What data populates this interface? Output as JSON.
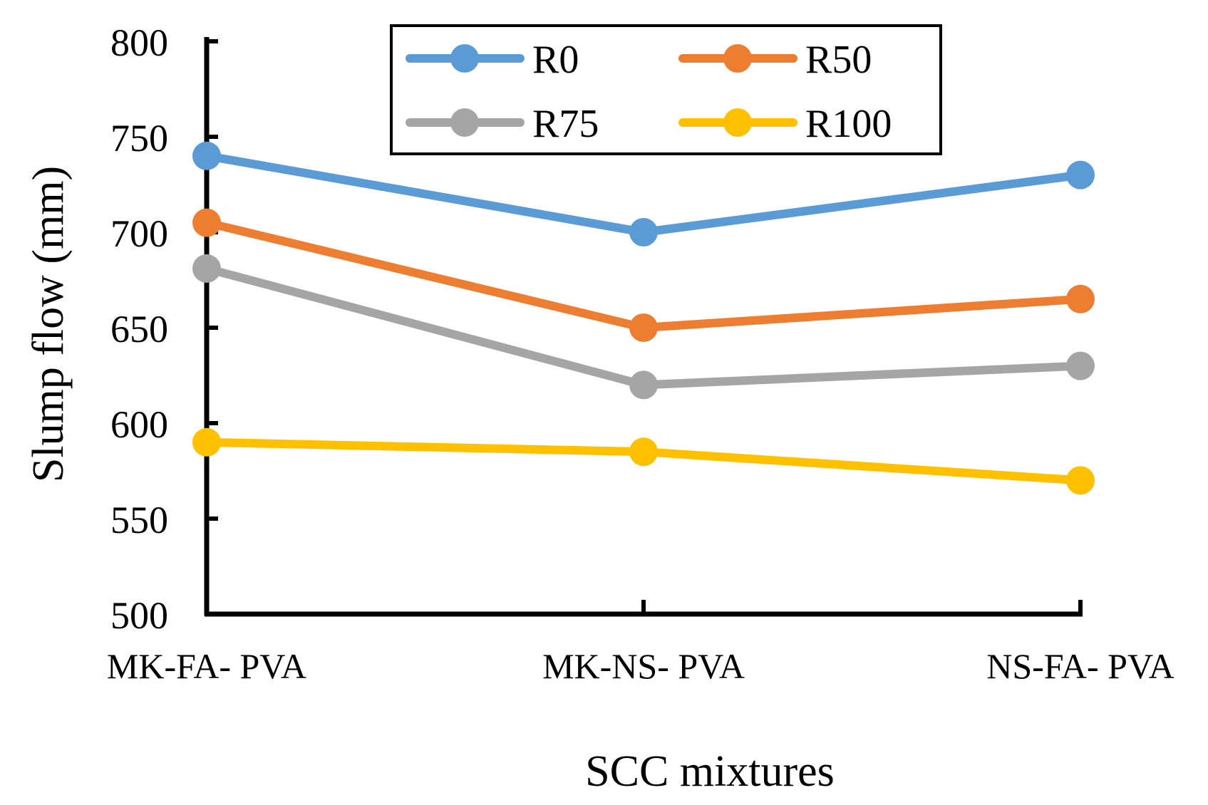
{
  "chart_data": {
    "type": "line",
    "title": "",
    "xlabel": "SCC mixtures",
    "ylabel": "Slump flow (mm)",
    "categories": [
      "MK-FA- PVA",
      "MK-NS- PVA",
      "NS-FA- PVA"
    ],
    "ylim": [
      500,
      800
    ],
    "yticks": [
      500,
      550,
      600,
      650,
      700,
      750,
      800
    ],
    "grid": false,
    "legend_position": "top-center",
    "series": [
      {
        "name": "R0",
        "color": "#5B9BD5",
        "values": [
          740,
          700,
          730
        ]
      },
      {
        "name": "R50",
        "color": "#ED7D31",
        "values": [
          705,
          650,
          665
        ]
      },
      {
        "name": "R75",
        "color": "#A5A5A5",
        "values": [
          681,
          620,
          630
        ]
      },
      {
        "name": "R100",
        "color": "#FFC000",
        "values": [
          590,
          585,
          570
        ]
      }
    ]
  }
}
